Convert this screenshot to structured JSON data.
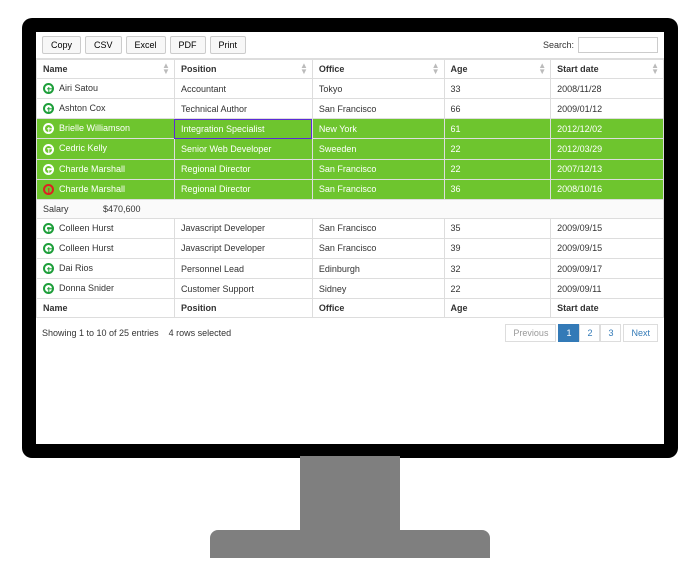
{
  "colors": {
    "selected_row_bg": "#6ec52e",
    "selected_row_text": "#ffffff",
    "border": "#dddddd",
    "pagination_active_bg": "#337ab7",
    "link": "#337ab7",
    "expand_icon": "#1e9e3a",
    "collapse_icon": "#d22222",
    "monitor_frame": "#000000",
    "stand": "#7f7f7f",
    "cell_highlight_outline": "#5b2bd6"
  },
  "toolbar": {
    "buttons": {
      "copy": "Copy",
      "csv": "CSV",
      "excel": "Excel",
      "pdf": "PDF",
      "print": "Print"
    },
    "search_label": "Search:",
    "search_value": ""
  },
  "columns": {
    "name": "Name",
    "position": "Position",
    "office": "Office",
    "age": "Age",
    "start_date": "Start date"
  },
  "rows": [
    {
      "name": "Airi Satou",
      "position": "Accountant",
      "office": "Tokyo",
      "age": "33",
      "start_date": "2008/11/28",
      "selected": false,
      "expanded": false
    },
    {
      "name": "Ashton Cox",
      "position": "Technical Author",
      "office": "San Francisco",
      "age": "66",
      "start_date": "2009/01/12",
      "selected": false,
      "expanded": false
    },
    {
      "name": "Brielle Williamson",
      "position": "Integration Specialist",
      "office": "New York",
      "age": "61",
      "start_date": "2012/12/02",
      "selected": true,
      "expanded": false,
      "highlight_position_cell": true
    },
    {
      "name": "Cedric Kelly",
      "position": "Senior Web Developer",
      "office": "Sweeden",
      "age": "22",
      "start_date": "2012/03/29",
      "selected": true,
      "expanded": false
    },
    {
      "name": "Charde Marshall",
      "position": "Regional Director",
      "office": "San Francisco",
      "age": "22",
      "start_date": "2007/12/13",
      "selected": true,
      "expanded": false
    },
    {
      "name": "Charde Marshall",
      "position": "Regional Director",
      "office": "San Francisco",
      "age": "36",
      "start_date": "2008/10/16",
      "selected": true,
      "expanded": true,
      "child": {
        "label": "Salary",
        "value": "$470,600"
      }
    },
    {
      "name": "Colleen Hurst",
      "position": "Javascript Developer",
      "office": "San Francisco",
      "age": "35",
      "start_date": "2009/09/15",
      "selected": false,
      "expanded": false
    },
    {
      "name": "Colleen Hurst",
      "position": "Javascript Developer",
      "office": "San Francisco",
      "age": "39",
      "start_date": "2009/09/15",
      "selected": false,
      "expanded": false
    },
    {
      "name": "Dai Rios",
      "position": "Personnel Lead",
      "office": "Edinburgh",
      "age": "32",
      "start_date": "2009/09/17",
      "selected": false,
      "expanded": false
    },
    {
      "name": "Donna Snider",
      "position": "Customer Support",
      "office": "Sidney",
      "age": "22",
      "start_date": "2009/09/11",
      "selected": false,
      "expanded": false
    }
  ],
  "footer": {
    "name": "Name",
    "position": "Position",
    "office": "Office",
    "age": "Age",
    "start_date": "Start date"
  },
  "status": {
    "info": "Showing 1 to 10 of 25 entries",
    "selection": "4 rows selected"
  },
  "pagination": {
    "previous": "Previous",
    "pages": [
      "1",
      "2",
      "3"
    ],
    "active_index": 0,
    "next": "Next"
  }
}
